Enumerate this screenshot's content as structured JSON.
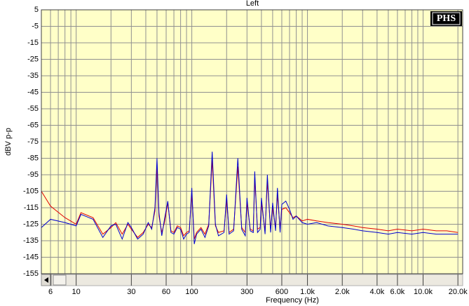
{
  "chart_data": {
    "type": "line",
    "title": "Left",
    "logo": "PHS",
    "x_label": "Frequency (Hz)",
    "y_label": "dBV p-p",
    "x_log": true,
    "grid": true,
    "minor_grid": true,
    "xlim": [
      5,
      22000
    ],
    "ylim": [
      -155,
      5
    ],
    "xticks": [
      6,
      10,
      30,
      60,
      100,
      300,
      600,
      {
        "value": 1000,
        "label": "1.0k"
      },
      {
        "value": 2000,
        "label": "2.0k"
      },
      {
        "value": 4000,
        "label": "4.0k"
      },
      {
        "value": 6000,
        "label": "6.0k"
      },
      {
        "value": 10000,
        "label": "10.0k"
      },
      {
        "value": 20000,
        "label": "20.0k"
      }
    ],
    "yticks": [
      5,
      -5,
      -15,
      -25,
      -35,
      -45,
      -55,
      -65,
      -75,
      -85,
      -95,
      -105,
      -115,
      -125,
      -135,
      -145,
      -155
    ],
    "x": [
      5,
      6,
      8,
      10,
      11,
      14,
      17,
      20,
      22,
      25,
      28,
      30,
      34,
      38,
      42,
      45,
      48,
      50,
      52,
      55,
      58,
      62,
      66,
      70,
      75,
      80,
      85,
      90,
      95,
      100,
      105,
      110,
      120,
      130,
      140,
      150,
      160,
      170,
      190,
      200,
      210,
      230,
      250,
      270,
      290,
      300,
      320,
      340,
      350,
      370,
      390,
      400,
      430,
      450,
      480,
      500,
      530,
      550,
      580,
      600,
      650,
      700,
      750,
      800,
      900,
      1000,
      1200,
      1500,
      2000,
      2500,
      3000,
      4000,
      5000,
      6000,
      8000,
      10000,
      13000,
      16000,
      20000
    ],
    "series": [
      {
        "name": "Red",
        "color": "#e00000",
        "values": [
          -105,
          -114,
          -121,
          -125,
          -118,
          -121,
          -131,
          -127,
          -124,
          -131,
          -125,
          -128,
          -133,
          -130,
          -125,
          -127,
          -117,
          -90,
          -120,
          -130,
          -124,
          -112,
          -129,
          -130,
          -126,
          -127,
          -132,
          -130,
          -129,
          -106,
          -134,
          -130,
          -127,
          -131,
          -125,
          -86,
          -126,
          -130,
          -129,
          -110,
          -130,
          -128,
          -90,
          -127,
          -130,
          -112,
          -128,
          -129,
          -97,
          -128,
          -127,
          -112,
          -129,
          -99,
          -128,
          -115,
          -127,
          -107,
          -128,
          -116,
          -115,
          -118,
          -121,
          -120,
          -123,
          -122,
          -123,
          -124,
          -125,
          -126,
          -127,
          -128,
          -129,
          -128,
          -129,
          -128,
          -129,
          -129,
          -130
        ]
      },
      {
        "name": "Blue",
        "color": "#0000d0",
        "values": [
          -127,
          -122,
          -124,
          -126,
          -119,
          -122,
          -133,
          -126,
          -125,
          -134,
          -124,
          -127,
          -134,
          -131,
          -124,
          -128,
          -115,
          -85,
          -118,
          -132,
          -122,
          -111,
          -130,
          -131,
          -127,
          -128,
          -134,
          -131,
          -130,
          -103,
          -137,
          -131,
          -128,
          -133,
          -126,
          -81,
          -125,
          -132,
          -130,
          -107,
          -131,
          -129,
          -85,
          -128,
          -132,
          -109,
          -129,
          -130,
          -93,
          -130,
          -128,
          -109,
          -131,
          -95,
          -130,
          -112,
          -129,
          -103,
          -130,
          -113,
          -111,
          -116,
          -122,
          -120,
          -124,
          -125,
          -124,
          -126,
          -127,
          -128,
          -129,
          -130,
          -131,
          -130,
          -131,
          -130,
          -131,
          -131,
          -131
        ]
      }
    ]
  }
}
